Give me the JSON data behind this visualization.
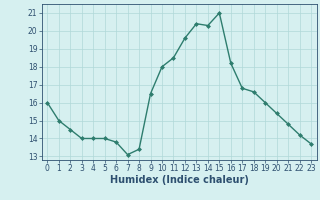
{
  "x": [
    0,
    1,
    2,
    3,
    4,
    5,
    6,
    7,
    8,
    9,
    10,
    11,
    12,
    13,
    14,
    15,
    16,
    17,
    18,
    19,
    20,
    21,
    22,
    23
  ],
  "y": [
    16.0,
    15.0,
    14.5,
    14.0,
    14.0,
    14.0,
    13.8,
    13.1,
    13.4,
    16.5,
    18.0,
    18.5,
    19.6,
    20.4,
    20.3,
    21.0,
    18.2,
    16.8,
    16.6,
    16.0,
    15.4,
    14.8,
    14.2,
    13.7
  ],
  "line_color": "#2e7d6e",
  "marker": "D",
  "marker_size": 2.0,
  "bg_color": "#d6f0f0",
  "grid_color": "#b0d8d8",
  "xlabel": "Humidex (Indice chaleur)",
  "xlabel_fontsize": 7,
  "xlabel_color": "#2e5070",
  "tick_color": "#2e5070",
  "xlim": [
    -0.5,
    23.5
  ],
  "ylim": [
    12.8,
    21.5
  ],
  "yticks": [
    13,
    14,
    15,
    16,
    17,
    18,
    19,
    20,
    21
  ],
  "xticks": [
    0,
    1,
    2,
    3,
    4,
    5,
    6,
    7,
    8,
    9,
    10,
    11,
    12,
    13,
    14,
    15,
    16,
    17,
    18,
    19,
    20,
    21,
    22,
    23
  ],
  "tick_fontsize": 5.5,
  "line_width": 1.0
}
